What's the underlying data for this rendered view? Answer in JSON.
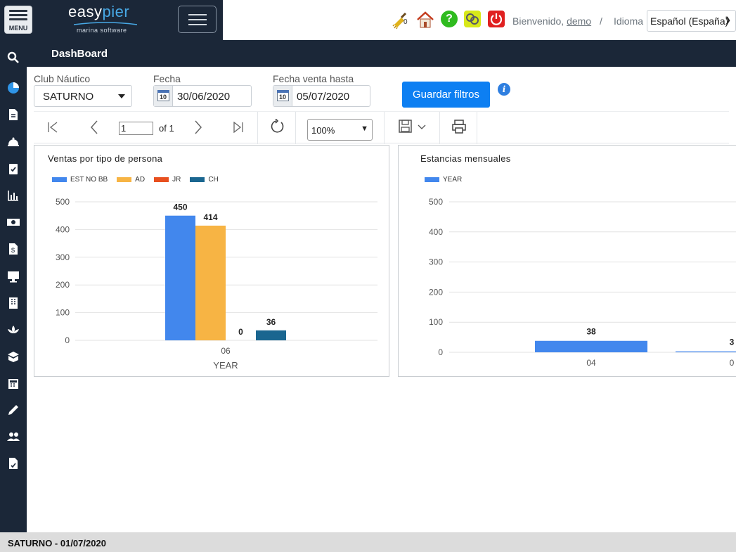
{
  "header": {
    "menu_label": "MENU",
    "logo_word_a": "easy",
    "logo_word_b": "pier",
    "logo_sub": "marina software",
    "broom_badge": "0",
    "welcome_prefix": "Bienvenido,",
    "username": "demo",
    "separator": "/",
    "language_label": "Idioma",
    "language_value": "Español (España)"
  },
  "sidebar": {
    "icons": [
      "search-icon",
      "pie-chart-icon",
      "document-icon",
      "bell-icon",
      "clipboard-check-icon",
      "bar-chart-icon",
      "money-icon",
      "invoice-icon",
      "monitor-icon",
      "building-icon",
      "lotus-icon",
      "box-icon",
      "calculator-icon",
      "pencil-icon",
      "users-icon",
      "file-report-icon"
    ]
  },
  "page": {
    "title": "DashBoard"
  },
  "filters": {
    "club_label": "Club Náutico",
    "club_value": "SATURNO",
    "date_label": "Fecha",
    "date_value": "30/06/2020",
    "sale_date_label": "Fecha venta hasta",
    "sale_date_value": "05/07/2020",
    "save_label": "Guardar filtros"
  },
  "report_toolbar": {
    "page_value": "1",
    "page_of": "of 1",
    "zoom": "100%"
  },
  "colors": {
    "dark": "#1b2738",
    "primary": "#0d7ff2",
    "series_est": "#4287ed",
    "series_ad": "#f7b444",
    "series_jr": "#e8501f",
    "series_ch": "#1a6690"
  },
  "chart_data": [
    {
      "type": "bar",
      "title": "Ventas por tipo de persona",
      "categories": [
        "06"
      ],
      "xlabel": "YEAR",
      "ylabel": "",
      "ylim": [
        0,
        500
      ],
      "yticks": [
        0,
        100,
        200,
        300,
        400,
        500
      ],
      "series": [
        {
          "name": "EST NO BB",
          "values": [
            450
          ]
        },
        {
          "name": "AD",
          "values": [
            414
          ]
        },
        {
          "name": "JR",
          "values": [
            0
          ]
        },
        {
          "name": "CH",
          "values": [
            36
          ]
        }
      ],
      "legend": "top-left",
      "grid": true
    },
    {
      "type": "bar",
      "title": "Estancias mensuales",
      "categories": [
        "04",
        "0"
      ],
      "xlabel": "",
      "ylabel": "",
      "ylim": [
        0,
        500
      ],
      "yticks": [
        0,
        100,
        200,
        300,
        400,
        500
      ],
      "series": [
        {
          "name": "YEAR",
          "values": [
            38,
            3
          ]
        }
      ],
      "legend": "top-left",
      "grid": true
    }
  ],
  "footer": {
    "status": "SATURNO - 01/07/2020"
  }
}
